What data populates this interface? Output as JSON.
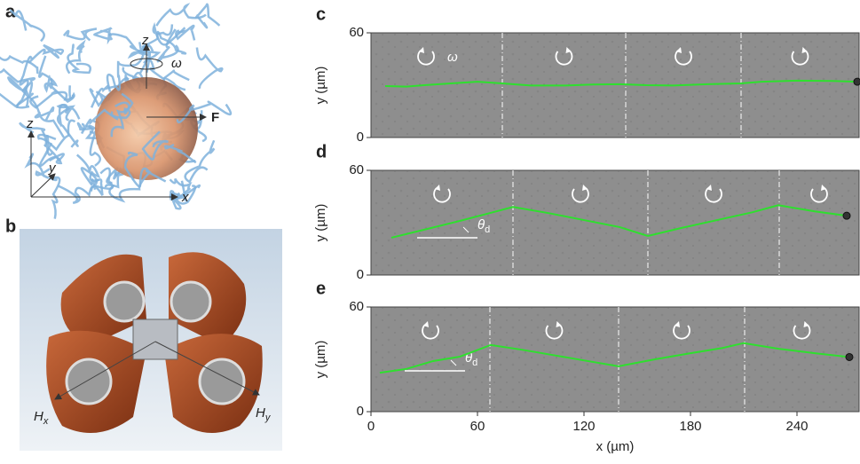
{
  "panels": {
    "a": {
      "label": "a",
      "rotation_axis": "z",
      "omega": "ω",
      "force": "F",
      "axis_z": "z",
      "axis_y": "y",
      "axis_x": "x"
    },
    "b": {
      "label": "b",
      "hx": {
        "symbol": "H",
        "subscript": "x"
      },
      "hy": {
        "symbol": "H",
        "subscript": "y"
      }
    }
  },
  "chart_data": [
    {
      "type": "line",
      "panel": "c",
      "ylabel": "y (µm)",
      "xlim": [
        0,
        275
      ],
      "ylim": [
        0,
        60
      ],
      "yticks": [
        0,
        60
      ],
      "reversals": [
        74,
        143.5,
        208.5
      ],
      "annotation": "ω",
      "series": [
        {
          "color": "#2ee02e",
          "x": [
            8,
            20,
            30,
            45,
            60,
            74,
            90,
            110,
            125,
            140,
            155,
            170,
            190,
            208.5,
            220,
            240,
            260,
            274
          ],
          "values": [
            29.5,
            29.2,
            30,
            31,
            32,
            31,
            29.8,
            29.8,
            30.4,
            30.6,
            30,
            29.8,
            30.6,
            31,
            32,
            32.6,
            32.4,
            32
          ]
        }
      ]
    },
    {
      "type": "line",
      "panel": "d",
      "ylabel": "y (µm)",
      "xlim": [
        0,
        275
      ],
      "ylim": [
        0,
        60
      ],
      "yticks": [
        0,
        60
      ],
      "reversals": [
        80,
        156,
        230
      ],
      "annotation": {
        "symbol": "θ",
        "subscript": "d"
      },
      "series": [
        {
          "color": "#2ee02e",
          "x": [
            11.5,
            30,
            50,
            65,
            80,
            100,
            120,
            140,
            156,
            175,
            195,
            215,
            229.5,
            250,
            268
          ],
          "values": [
            21.4,
            26,
            31,
            35,
            39,
            35.5,
            31.5,
            27.5,
            22.4,
            27,
            31.5,
            36,
            40,
            36.5,
            34
          ]
        }
      ]
    },
    {
      "type": "line",
      "panel": "e",
      "ylabel": "y (µm)",
      "xlabel": "x (µm)",
      "xlim": [
        0,
        275
      ],
      "ylim": [
        0,
        60
      ],
      "yticks": [
        0,
        60
      ],
      "xticks": [
        0,
        60,
        120,
        180,
        240
      ],
      "reversals": [
        67,
        139.5,
        210.5
      ],
      "annotation": {
        "symbol": "θ",
        "subscript": "d"
      },
      "series": [
        {
          "color": "#2ee02e",
          "x": [
            5,
            20,
            35,
            50,
            67.5,
            85,
            105,
            125,
            139.5,
            160,
            180,
            198,
            210,
            230,
            250,
            269.5
          ],
          "values": [
            22.3,
            24.5,
            29,
            31.5,
            38.2,
            35.5,
            32,
            28.5,
            26,
            30,
            33.5,
            36.5,
            39.3,
            36,
            33.5,
            31.3
          ]
        }
      ]
    }
  ]
}
